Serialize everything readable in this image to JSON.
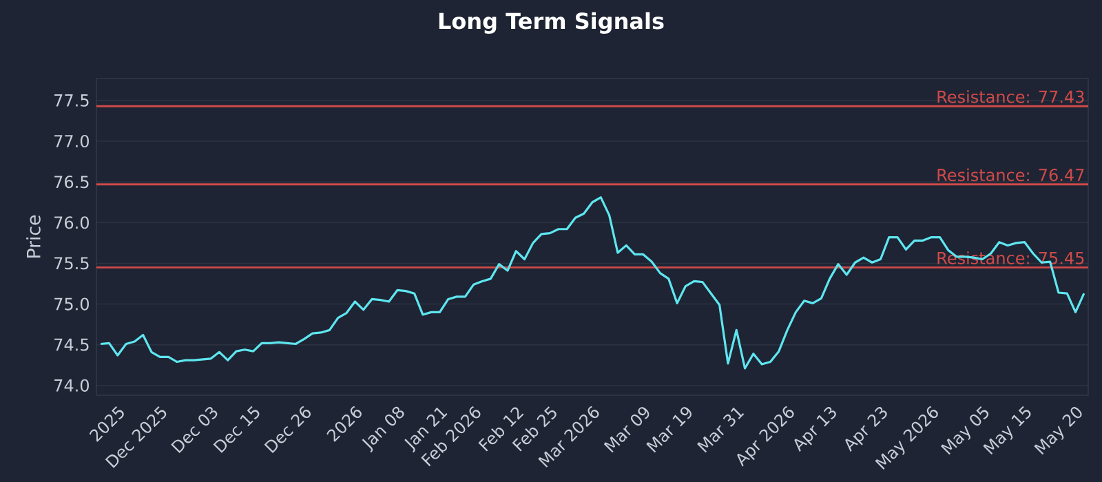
{
  "chart_data": {
    "type": "line",
    "title": "Long Term Signals",
    "ylabel": "Price",
    "categories": [
      null,
      null,
      "2025",
      null,
      null,
      null,
      null,
      "Dec 2025",
      null,
      null,
      null,
      null,
      null,
      "Dec 03",
      null,
      null,
      null,
      null,
      "Dec 15",
      null,
      null,
      null,
      null,
      null,
      "Dec 26",
      null,
      null,
      null,
      null,
      null,
      "2026",
      null,
      null,
      null,
      null,
      "Jan 08",
      null,
      null,
      null,
      null,
      "Jan 21",
      null,
      null,
      null,
      "Feb 2026",
      null,
      null,
      null,
      null,
      "Feb 12",
      null,
      null,
      null,
      "Feb 25",
      null,
      null,
      null,
      null,
      "Mar 2026",
      null,
      null,
      null,
      null,
      null,
      "Mar 09",
      null,
      null,
      null,
      null,
      "Mar 19",
      null,
      null,
      null,
      null,
      null,
      "Mar 31",
      null,
      null,
      null,
      null,
      null,
      "Apr 2026",
      null,
      null,
      null,
      null,
      "Apr 13",
      null,
      null,
      null,
      null,
      null,
      "Apr 23",
      null,
      null,
      null,
      null,
      null,
      "May 2026",
      null,
      null,
      null,
      null,
      null,
      "May 05",
      null,
      null,
      null,
      null,
      "May 15",
      null,
      null,
      null,
      null,
      null,
      "May 20",
      null
    ],
    "series": [
      {
        "color": "#5ee6f0",
        "values": [
          74.51,
          74.52,
          74.37,
          74.51,
          74.54,
          74.62,
          74.41,
          74.35,
          74.35,
          74.29,
          74.31,
          74.31,
          74.32,
          74.33,
          74.41,
          74.31,
          74.42,
          74.44,
          74.42,
          74.52,
          74.52,
          74.53,
          74.52,
          74.51,
          74.57,
          74.64,
          74.65,
          74.68,
          74.83,
          74.89,
          75.03,
          74.93,
          75.06,
          75.05,
          75.03,
          75.17,
          75.16,
          75.13,
          74.87,
          74.9,
          74.9,
          75.06,
          75.09,
          75.09,
          75.24,
          75.28,
          75.31,
          75.49,
          75.41,
          75.65,
          75.55,
          75.75,
          75.86,
          75.87,
          75.92,
          75.92,
          76.06,
          76.11,
          76.25,
          76.31,
          76.09,
          75.63,
          75.72,
          75.61,
          75.61,
          75.52,
          75.38,
          75.31,
          75.01,
          75.22,
          75.28,
          75.27,
          75.13,
          74.99,
          74.27,
          74.68,
          74.21,
          74.39,
          74.26,
          74.29,
          74.42,
          74.68,
          74.9,
          75.04,
          75.01,
          75.07,
          75.31,
          75.49,
          75.36,
          75.51,
          75.57,
          75.51,
          75.55,
          75.82,
          75.82,
          75.67,
          75.78,
          75.78,
          75.82,
          75.82,
          75.66,
          75.58,
          75.58,
          75.57,
          75.55,
          75.62,
          75.76,
          75.72,
          75.75,
          75.76,
          75.62,
          75.51,
          75.52,
          75.14,
          75.13,
          74.9,
          75.13
        ]
      }
    ],
    "ylim": [
      73.88,
      77.77
    ],
    "yticks": [
      {
        "value": 74,
        "label": "74.0"
      },
      {
        "value": 74.5,
        "label": "74.5"
      },
      {
        "value": 75,
        "label": "75.0"
      },
      {
        "value": 75.5,
        "label": "75.5"
      },
      {
        "value": 76,
        "label": "76.0"
      },
      {
        "value": 76.5,
        "label": "76.5"
      },
      {
        "value": 77,
        "label": "77.0"
      },
      {
        "value": 77.5,
        "label": "77.5"
      }
    ],
    "grid": "y",
    "ref_lines": [
      {
        "axis": "y",
        "value": 77.43,
        "label": "Resistance: 77.43",
        "color": "#d04a4a"
      },
      {
        "axis": "y",
        "value": 76.47,
        "label": "Resistance: 76.47",
        "color": "#d04a4a"
      },
      {
        "axis": "y",
        "value": 75.45,
        "label": "Resistance: 75.45",
        "color": "#d04a4a"
      }
    ]
  }
}
